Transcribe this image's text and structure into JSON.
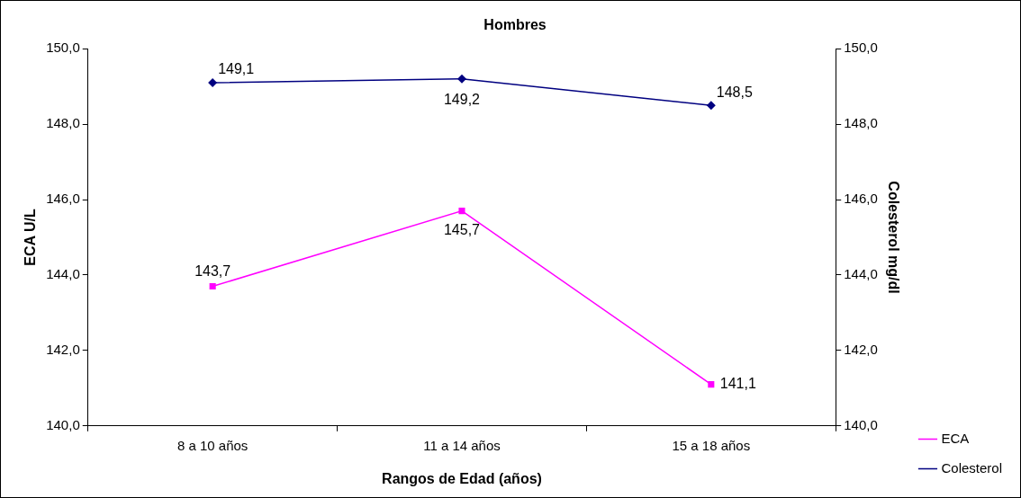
{
  "chart_data": {
    "type": "line",
    "title": "Hombres",
    "xlabel": "Rangos de Edad (años)",
    "ylabel": "ECA U/L",
    "y2label": "Colesterol mg/dl",
    "categories": [
      "8 a 10 años",
      "11 a 14 años",
      "15 a 18 años"
    ],
    "series": [
      {
        "name": "ECA",
        "color": "#ff00ff",
        "marker": "square",
        "values": [
          143.7,
          145.7,
          141.1
        ],
        "value_labels": [
          "143,7",
          "145,7",
          "141,1"
        ]
      },
      {
        "name": "Colesterol",
        "color": "#000080",
        "marker": "diamond",
        "axis": "y2",
        "values": [
          149.1,
          149.2,
          148.5
        ],
        "value_labels": [
          "149,1",
          "149,2",
          "148,5"
        ]
      }
    ],
    "ylim": [
      140,
      150
    ],
    "yticks": [
      {
        "value": 140,
        "label": "140,0"
      },
      {
        "value": 142,
        "label": "142,0"
      },
      {
        "value": 144,
        "label": "144,0"
      },
      {
        "value": 146,
        "label": "146,0"
      },
      {
        "value": 148,
        "label": "148,0"
      },
      {
        "value": 150,
        "label": "150,0"
      }
    ],
    "y2lim": [
      140,
      150
    ],
    "y2ticks": [
      {
        "value": 140,
        "label": "140,0"
      },
      {
        "value": 142,
        "label": "142,0"
      },
      {
        "value": 144,
        "label": "144,0"
      },
      {
        "value": 146,
        "label": "146,0"
      },
      {
        "value": 148,
        "label": "148,0"
      },
      {
        "value": 150,
        "label": "150,0"
      }
    ],
    "grid": false,
    "legend": "bottom right",
    "line_style": "solid"
  }
}
